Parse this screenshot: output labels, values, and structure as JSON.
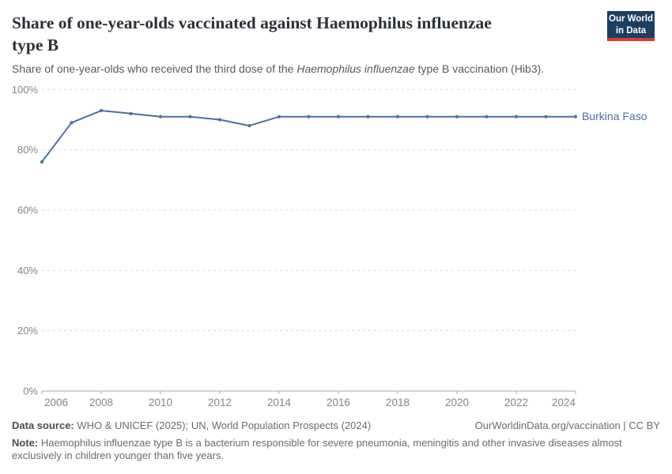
{
  "header": {
    "title_line1": "Share of one-year-olds vaccinated against Haemophilus influenzae",
    "title_line2": "type B",
    "subtitle_prefix": "Share of one-year-olds who received the third dose of the ",
    "subtitle_italic": "Haemophilus influenzae",
    "subtitle_suffix": " type B vaccination (Hib3).",
    "logo": {
      "line1": "Our World",
      "line2": "in Data",
      "bg_color": "#1d3d63",
      "stripe_color": "#d93a34"
    }
  },
  "chart_data": {
    "type": "line",
    "title": "Share of one-year-olds vaccinated against Haemophilus influenzae type B",
    "subtitle": "Share of one-year-olds who received the third dose of the Haemophilus influenzae type B vaccination (Hib3).",
    "x": [
      2006,
      2007,
      2008,
      2009,
      2010,
      2011,
      2012,
      2013,
      2014,
      2015,
      2016,
      2017,
      2018,
      2019,
      2020,
      2021,
      2022,
      2023,
      2024
    ],
    "series": [
      {
        "name": "Burkina Faso",
        "color": "#4c6ea4",
        "values": [
          76,
          89,
          93,
          92,
          91,
          91,
          90,
          88,
          91,
          91,
          91,
          91,
          91,
          91,
          91,
          91,
          91,
          91,
          91
        ]
      }
    ],
    "x_ticks": [
      2006,
      2008,
      2010,
      2012,
      2014,
      2016,
      2018,
      2020,
      2022,
      2024
    ],
    "y_ticks": [
      0,
      20,
      40,
      60,
      80,
      100
    ],
    "y_tick_suffix": "%",
    "xlim": [
      2006,
      2024
    ],
    "ylim": [
      0,
      100
    ],
    "grid": "horizontal-dashed",
    "legend_position": "end-of-line",
    "grid_color": "#dcdcdc",
    "axis_color": "#a8a8a8",
    "tick_label_color": "#858585"
  },
  "footer": {
    "datasource_label": "Data source:",
    "datasource_text": " WHO & UNICEF (2025); UN, World Population Prospects (2024)",
    "citation": "OurWorldinData.org/vaccination | CC BY",
    "note_label": "Note:",
    "note_text": " Haemophilus influenzae type B is a bacterium responsible for severe pneumonia, meningitis and other invasive diseases almost exclusively in children younger than five years."
  }
}
